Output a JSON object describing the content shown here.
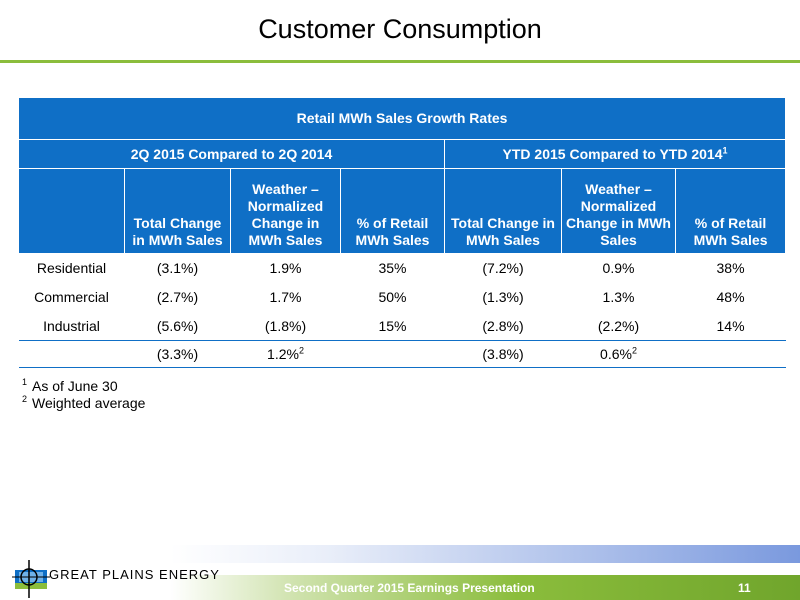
{
  "slide": {
    "title": "Customer Consumption",
    "page_number": "11",
    "footer_text": "Second Quarter 2015 Earnings Presentation",
    "logo_text": "GREAT PLAINS ENERGY"
  },
  "table": {
    "title": "Retail MWh Sales Growth Rates",
    "group_q2": "2Q 2015 Compared to 2Q 2014",
    "group_ytd": "YTD 2015 Compared to  YTD 2014",
    "group_ytd_note": "1",
    "headers": {
      "q2_total": "Total Change in MWh Sales",
      "q2_weather": "Weather – Normalized Change in MWh Sales",
      "q2_pct": "% of Retail MWh Sales",
      "ytd_total": "Total Change in MWh Sales",
      "ytd_weather": "Weather – Normalized Change in MWh Sales",
      "ytd_pct": "% of Retail MWh Sales"
    },
    "rows": [
      {
        "label": "Residential",
        "q2_total": "(3.1%)",
        "q2_weather": "1.9%",
        "q2_pct": "35%",
        "ytd_total": "(7.2%)",
        "ytd_weather": "0.9%",
        "ytd_pct": "38%"
      },
      {
        "label": "Commercial",
        "q2_total": "(2.7%)",
        "q2_weather": "1.7%",
        "q2_pct": "50%",
        "ytd_total": "(1.3%)",
        "ytd_weather": "1.3%",
        "ytd_pct": "48%"
      },
      {
        "label": "Industrial",
        "q2_total": "(5.6%)",
        "q2_weather": "(1.8%)",
        "q2_pct": "15%",
        "ytd_total": "(2.8%)",
        "ytd_weather": "(2.2%)",
        "ytd_pct": "14%"
      }
    ],
    "total": {
      "q2_total": "(3.3%)",
      "q2_weather": "1.2%",
      "q2_weather_note": "2",
      "ytd_total": "(3.8%)",
      "ytd_weather": "0.6%",
      "ytd_weather_note": "2"
    }
  },
  "footnotes": [
    {
      "mark": "1",
      "text": "As of June 30"
    },
    {
      "mark": "2",
      "text": "Weighted average"
    }
  ],
  "colors": {
    "header_blue": "#0f6fc6",
    "accent_green": "#8bbd3c"
  }
}
